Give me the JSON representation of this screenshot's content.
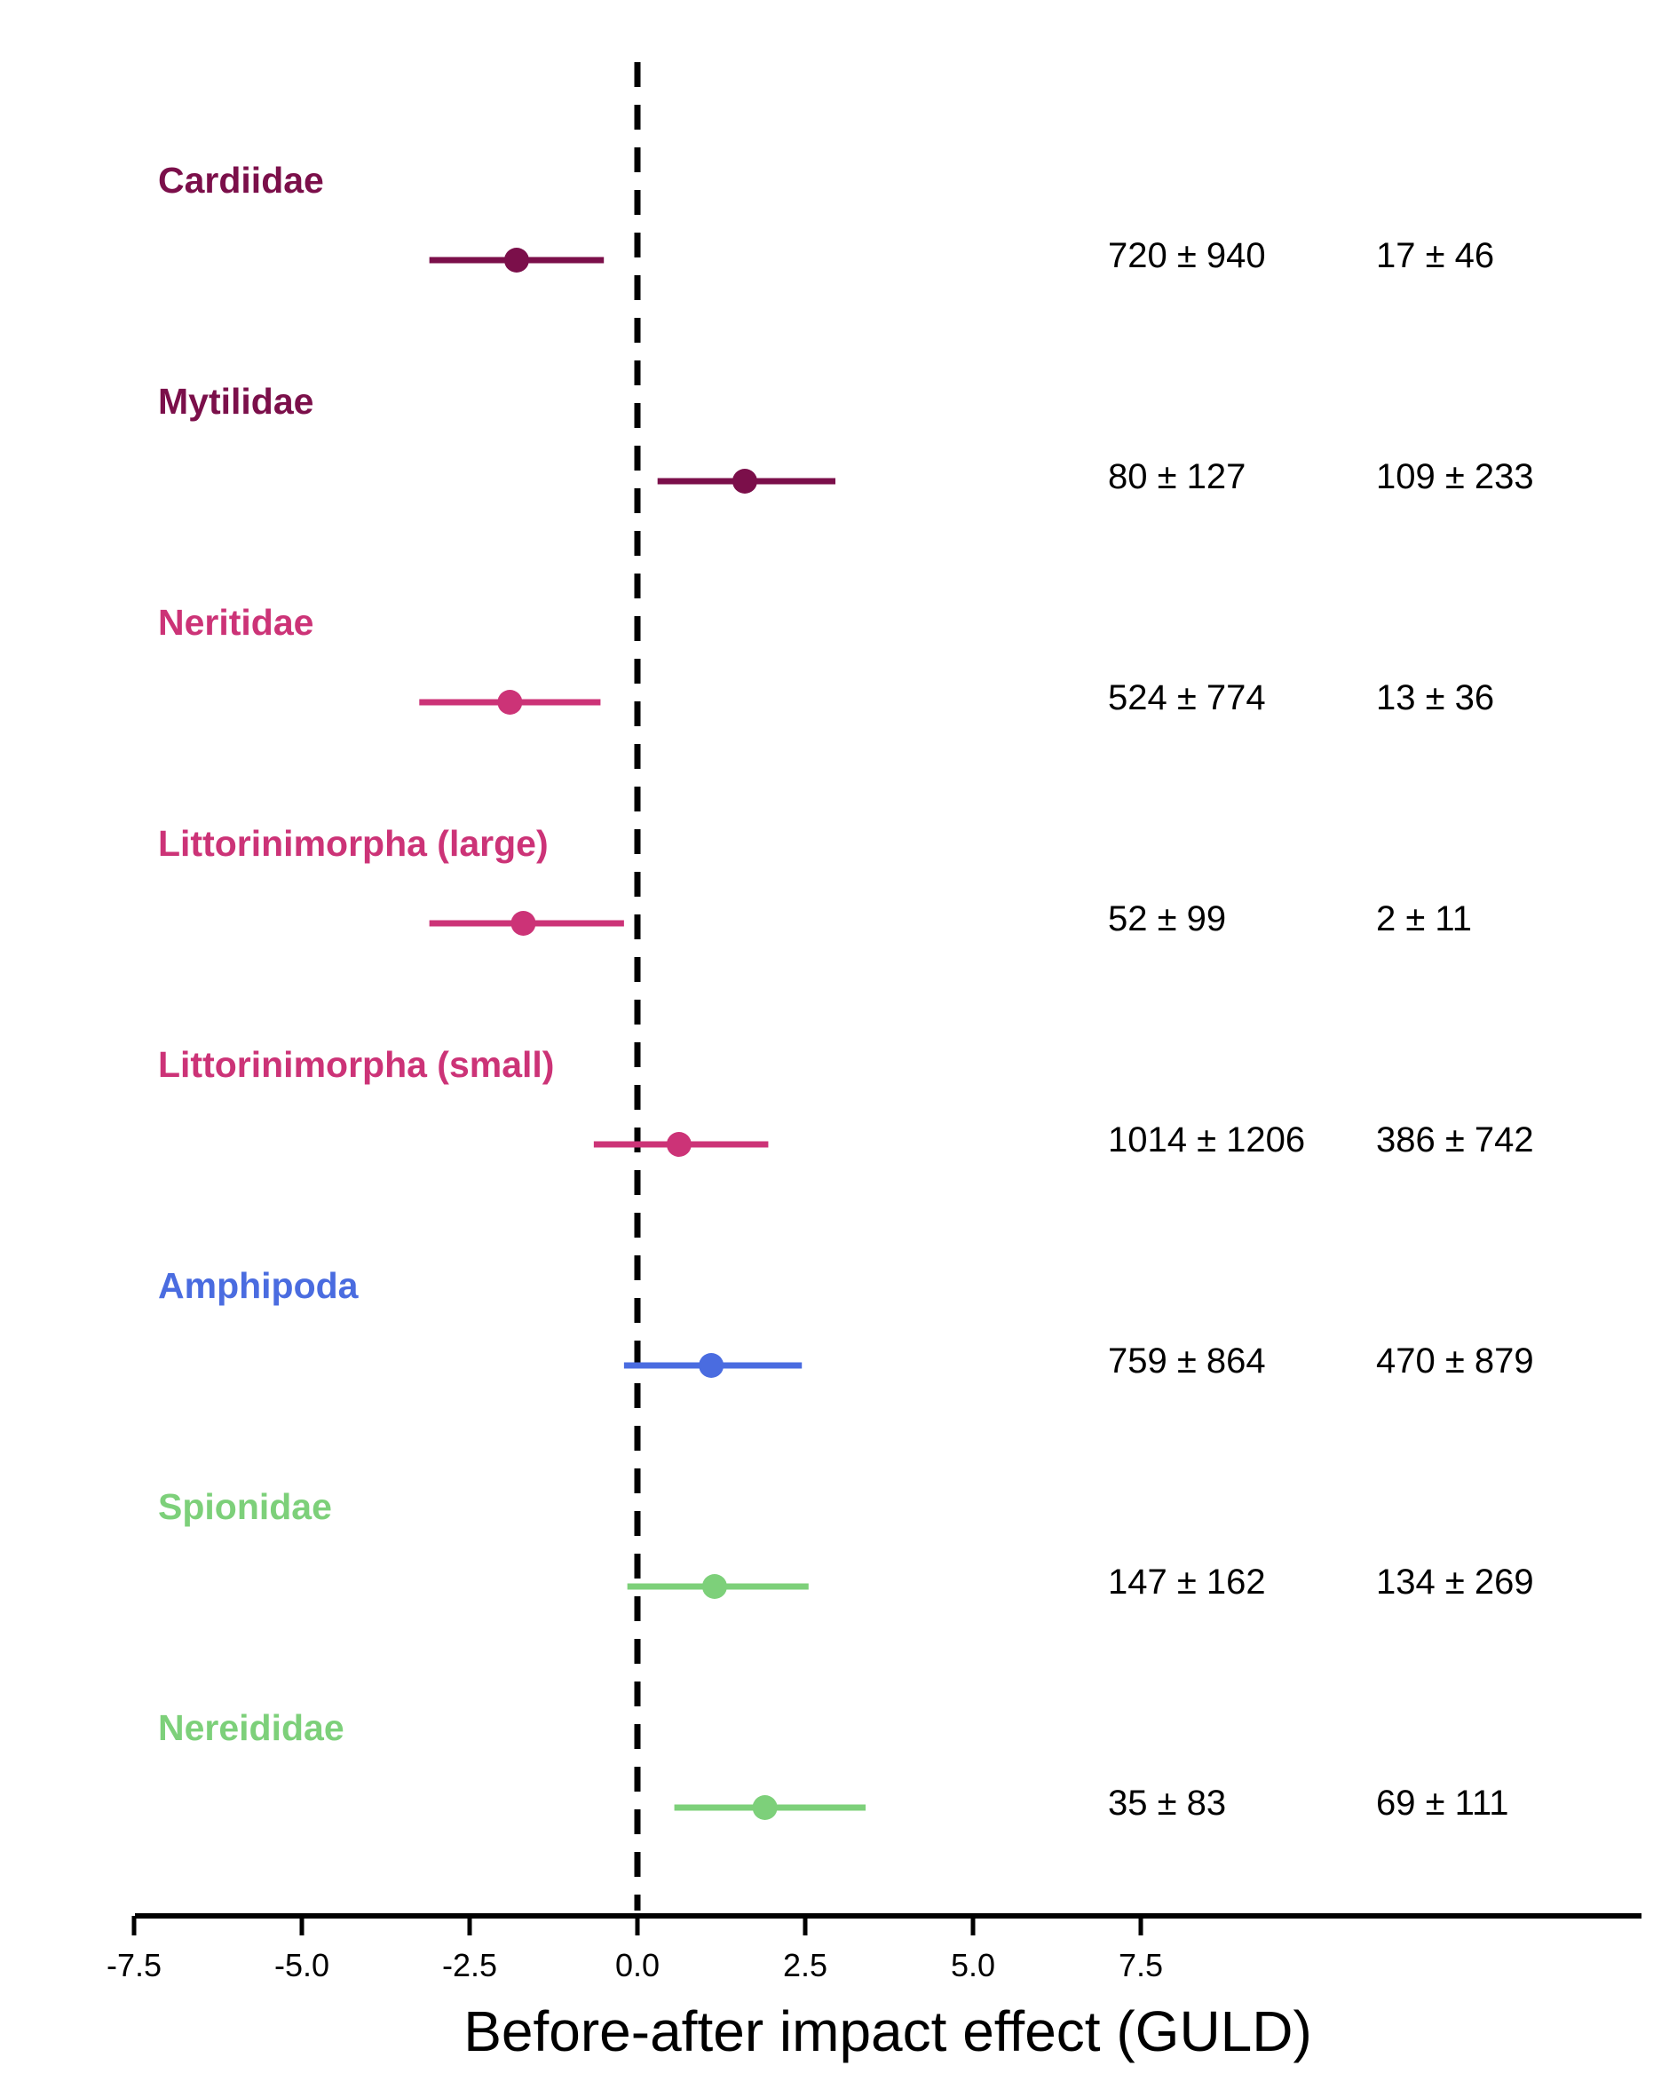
{
  "chart_data": {
    "type": "forest",
    "xlabel": "Before-after impact effect (GULD)",
    "xlim": [
      -7.5,
      15
    ],
    "x_ticks": [
      "-7.5",
      "-5.0",
      "-2.5",
      "0.0",
      "2.5",
      "5.0",
      "7.5"
    ],
    "reference_line": 0,
    "rows": [
      {
        "family": "Cardiidae",
        "color": "#7B0F4A",
        "estimate": -1.8,
        "lower": -3.1,
        "upper": -0.5,
        "stat_before": "720 ± 940",
        "stat_after": "17 ± 46"
      },
      {
        "family": "Mytilidae",
        "color": "#7B0F4A",
        "estimate": 1.6,
        "lower": 0.3,
        "upper": 2.95,
        "stat_before": "80 ± 127",
        "stat_after": "109 ± 233"
      },
      {
        "family": "Neritidae",
        "color": "#CC3377",
        "estimate": -1.9,
        "lower": -3.25,
        "upper": -0.55,
        "stat_before": "524 ± 774",
        "stat_after": "13 ± 36"
      },
      {
        "family": "Littorinimorpha (large)",
        "color": "#CC3377",
        "estimate": -1.7,
        "lower": -3.1,
        "upper": -0.2,
        "stat_before": "52 ± 99",
        "stat_after": "2 ± 11"
      },
      {
        "family": "Littorinimorpha (small)",
        "color": "#CC3377",
        "estimate": 0.62,
        "lower": -0.65,
        "upper": 1.95,
        "stat_before": "1014 ± 1206",
        "stat_after": "386 ± 742"
      },
      {
        "family": "Amphipoda",
        "color": "#4A6CE0",
        "estimate": 1.1,
        "lower": -0.2,
        "upper": 2.45,
        "stat_before": "759 ± 864",
        "stat_after": "470 ± 879"
      },
      {
        "family": "Spionidae",
        "color": "#7DD07A",
        "estimate": 1.15,
        "lower": -0.15,
        "upper": 2.55,
        "stat_before": "147 ± 162",
        "stat_after": "134 ± 269"
      },
      {
        "family": "Nereididae",
        "color": "#7DD07A",
        "estimate": 1.9,
        "lower": 0.55,
        "upper": 3.4,
        "stat_before": "35 ± 83",
        "stat_after": "69 ± 111"
      }
    ]
  }
}
